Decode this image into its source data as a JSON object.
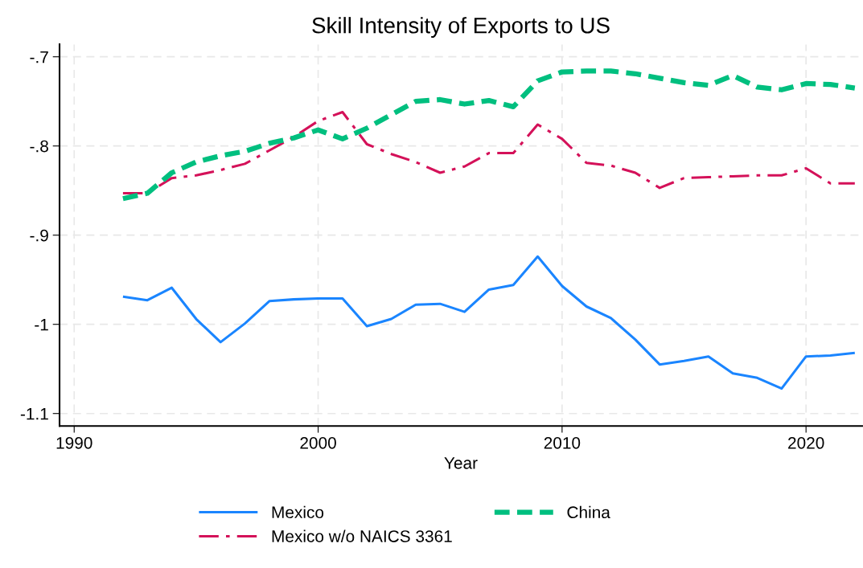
{
  "chart_data": {
    "type": "line",
    "title": "Skill Intensity of Exports to US",
    "xlabel": "Year",
    "x": [
      1992,
      1993,
      1994,
      1995,
      1996,
      1997,
      1998,
      1999,
      2000,
      2001,
      2002,
      2003,
      2004,
      2005,
      2006,
      2007,
      2008,
      2009,
      2010,
      2011,
      2012,
      2013,
      2014,
      2015,
      2016,
      2017,
      2018,
      2019,
      2020,
      2021,
      2022
    ],
    "series": [
      {
        "name": "Mexico",
        "color": "#1a85ff",
        "line_style": "solid",
        "values": [
          -0.969,
          -0.973,
          -0.959,
          -0.994,
          -1.02,
          -0.999,
          -0.974,
          -0.972,
          -0.971,
          -0.971,
          -1.002,
          -0.994,
          -0.978,
          -0.977,
          -0.986,
          -0.961,
          -0.956,
          -0.924,
          -0.957,
          -0.98,
          -0.993,
          -1.017,
          -1.045,
          -1.041,
          -1.036,
          -1.055,
          -1.06,
          -1.072,
          -1.036,
          -1.035,
          -1.032
        ]
      },
      {
        "name": "Mexico w/o NAICS 3361",
        "color": "#d41159",
        "line_style": "dashdot",
        "values": [
          -0.853,
          -0.853,
          -0.836,
          -0.833,
          -0.827,
          -0.82,
          -0.805,
          -0.79,
          -0.772,
          -0.762,
          -0.798,
          -0.809,
          -0.818,
          -0.83,
          -0.823,
          -0.808,
          -0.808,
          -0.776,
          -0.792,
          -0.819,
          -0.822,
          -0.83,
          -0.847,
          -0.836,
          -0.835,
          -0.834,
          -0.833,
          -0.833,
          -0.825,
          -0.842,
          -0.842
        ]
      },
      {
        "name": "China",
        "color": "#00bf7f",
        "line_style": "dashed",
        "values": [
          -0.859,
          -0.853,
          -0.83,
          -0.818,
          -0.811,
          -0.806,
          -0.797,
          -0.791,
          -0.782,
          -0.792,
          -0.78,
          -0.765,
          -0.75,
          -0.748,
          -0.753,
          -0.749,
          -0.756,
          -0.727,
          -0.717,
          -0.716,
          -0.716,
          -0.719,
          -0.724,
          -0.729,
          -0.732,
          -0.721,
          -0.734,
          -0.737,
          -0.73,
          -0.731,
          -0.735
        ]
      }
    ],
    "xlim": [
      1989.4,
      2022.3
    ],
    "xticks": [
      1990,
      2000,
      2010,
      2020
    ],
    "ylim": [
      -1.114,
      -0.686
    ],
    "yticks": [
      {
        "value": -1.1,
        "label": "-1.1"
      },
      {
        "value": -1.0,
        "label": "-1"
      },
      {
        "value": -0.9,
        "label": "-.9"
      },
      {
        "value": -0.8,
        "label": "-.8"
      },
      {
        "value": -0.7,
        "label": "-.7"
      }
    ],
    "grid": true,
    "legend": "bottom",
    "marker": "none"
  }
}
